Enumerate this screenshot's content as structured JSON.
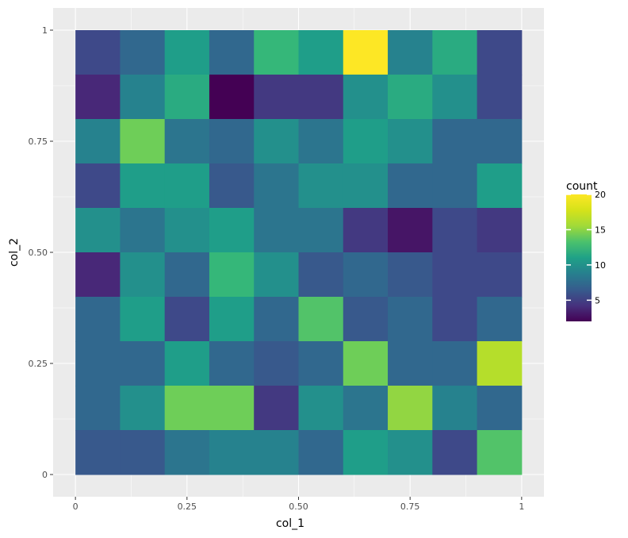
{
  "chart_data": {
    "type": "heatmap",
    "xlabel": "col_1",
    "ylabel": "col_2",
    "x_ticks": [
      "0",
      "0.25",
      "0.50",
      "0.75",
      "1"
    ],
    "x_tick_values": [
      0,
      0.25,
      0.5,
      0.75,
      1
    ],
    "y_ticks": [
      "0",
      "0.25",
      "0.50",
      "0.75",
      "1"
    ],
    "y_tick_values": [
      0,
      0.25,
      0.5,
      0.75,
      1
    ],
    "xlim": [
      -0.05,
      1.05
    ],
    "ylim": [
      -0.05,
      1.05
    ],
    "bin_width": 0.1,
    "x_bin_centers": [
      0.05,
      0.15,
      0.25,
      0.35,
      0.45,
      0.55,
      0.65,
      0.75,
      0.85,
      0.95
    ],
    "y_bin_centers_top_to_bottom": [
      0.95,
      0.85,
      0.75,
      0.65,
      0.55,
      0.45,
      0.35,
      0.25,
      0.15,
      0.05
    ],
    "values_top_to_bottom": [
      [
        6,
        8,
        12,
        8,
        14,
        12,
        20,
        10,
        13,
        6
      ],
      [
        4,
        10,
        13,
        2,
        5,
        5,
        11,
        13,
        11,
        6
      ],
      [
        10,
        16,
        9,
        8,
        11,
        9,
        12,
        11,
        8,
        8
      ],
      [
        6,
        12,
        12,
        7,
        9,
        11,
        11,
        8,
        8,
        12
      ],
      [
        11,
        9,
        11,
        12,
        9,
        9,
        5,
        3,
        6,
        5
      ],
      [
        4,
        11,
        8,
        14,
        11,
        7,
        8,
        7,
        6,
        6
      ],
      [
        8,
        12,
        6,
        12,
        8,
        15,
        7,
        8,
        6,
        8
      ],
      [
        8,
        8,
        12,
        8,
        7,
        8,
        16,
        8,
        8,
        18
      ],
      [
        8,
        11,
        16,
        16,
        5,
        11,
        9,
        17,
        10,
        8
      ],
      [
        7,
        7,
        9,
        10,
        10,
        8,
        12,
        11,
        6,
        15
      ]
    ],
    "legend": {
      "title": "count",
      "ticks": [
        "5",
        "10",
        "15",
        "20"
      ],
      "tick_values": [
        5,
        10,
        15,
        20
      ],
      "min": 2,
      "max": 20,
      "placement": "right"
    },
    "colors": {
      "panel_background": "#ebebeb",
      "grid": "#ffffff",
      "axis_text": "#4d4d4d",
      "viridis_low": "#440154",
      "viridis_high": "#fde725"
    },
    "grid": true
  }
}
